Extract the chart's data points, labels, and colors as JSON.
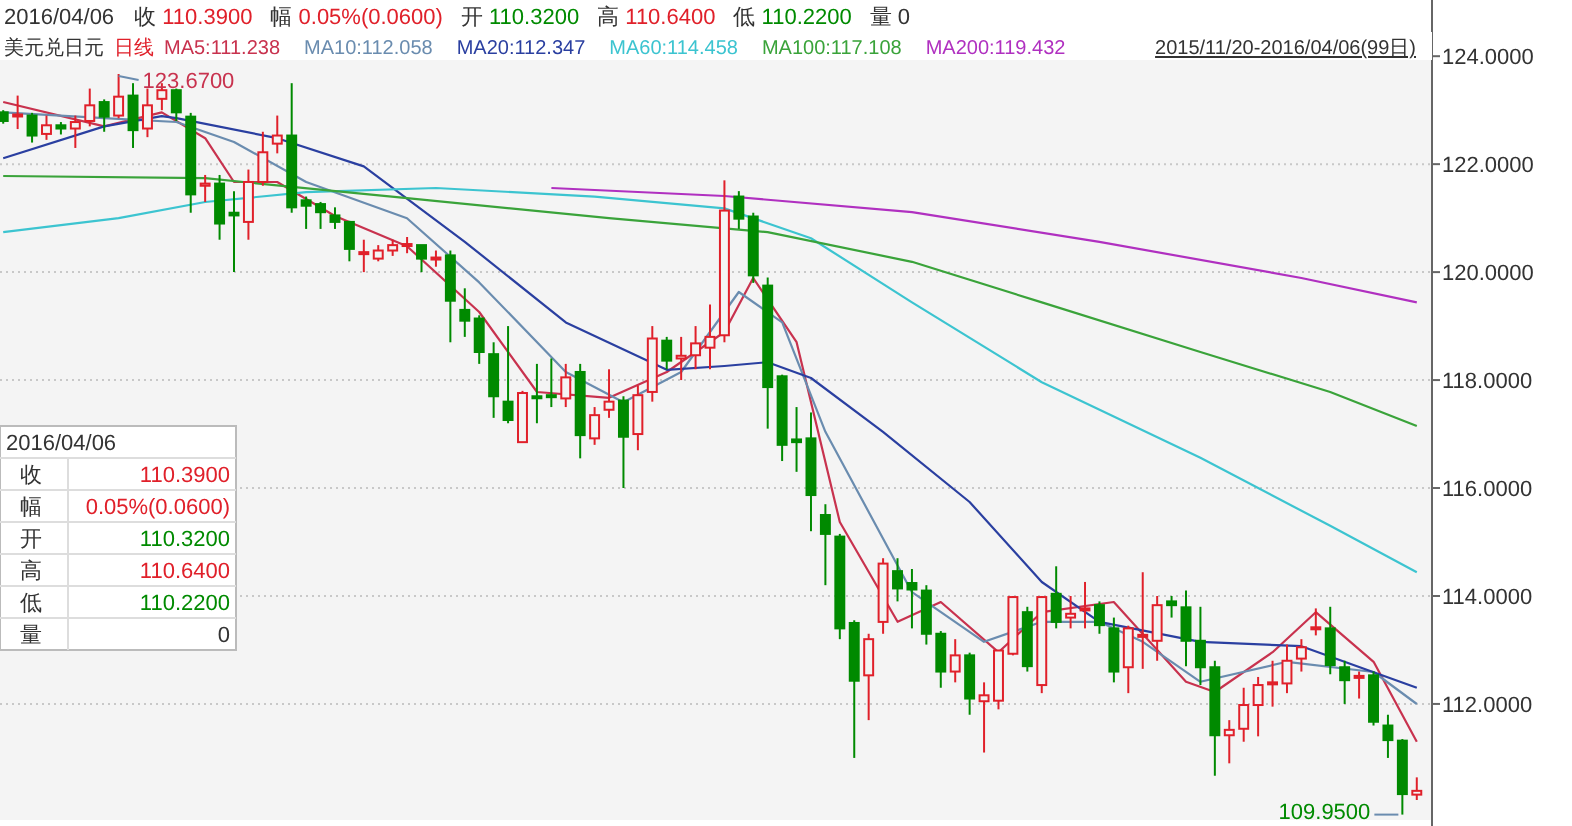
{
  "chart_data": {
    "type": "candlestick",
    "title": "美元兑日元",
    "subtitle": "日线",
    "legend": "top",
    "grid": "y",
    "categories": [
      null,
      null,
      null,
      null,
      null,
      null,
      null,
      null,
      null,
      null,
      null,
      null,
      null,
      null,
      null,
      null,
      null,
      null,
      null,
      null,
      null,
      null,
      null,
      null,
      null,
      null,
      null,
      null,
      null,
      null,
      null,
      null,
      null,
      null,
      null,
      null,
      null,
      null,
      null,
      null,
      null,
      null,
      null,
      null,
      null,
      null,
      null,
      null,
      null,
      null,
      null,
      null,
      null,
      null,
      null,
      null,
      null,
      null,
      null,
      null,
      null,
      null,
      null,
      null,
      null,
      null,
      null,
      null,
      null,
      null,
      null,
      null,
      null,
      null,
      null,
      null,
      null,
      null,
      null,
      null,
      null,
      null,
      null,
      null,
      null,
      null,
      null,
      null,
      null,
      null,
      null,
      null,
      null,
      null,
      null,
      null,
      null,
      null,
      null
    ],
    "ohlc": [
      [
        122.96,
        123.0,
        122.75,
        122.8
      ],
      [
        122.9,
        123.27,
        122.65,
        122.92
      ],
      [
        122.9,
        122.95,
        122.4,
        122.53
      ],
      [
        122.56,
        122.9,
        122.45,
        122.72
      ],
      [
        122.72,
        122.78,
        122.55,
        122.66
      ],
      [
        122.66,
        122.9,
        122.3,
        122.78
      ],
      [
        122.8,
        123.4,
        122.7,
        123.09
      ],
      [
        123.15,
        123.2,
        122.6,
        122.88
      ],
      [
        122.9,
        123.67,
        122.85,
        123.25
      ],
      [
        123.27,
        123.5,
        122.3,
        122.63
      ],
      [
        122.66,
        123.4,
        122.5,
        123.09
      ],
      [
        123.21,
        123.5,
        123.0,
        123.37
      ],
      [
        123.37,
        123.4,
        122.8,
        122.96
      ],
      [
        122.88,
        122.95,
        121.1,
        121.44
      ],
      [
        121.6,
        121.8,
        121.3,
        121.64
      ],
      [
        121.64,
        121.8,
        120.6,
        120.9
      ],
      [
        121.1,
        121.5,
        120.0,
        121.05
      ],
      [
        120.93,
        121.9,
        120.6,
        121.67
      ],
      [
        121.67,
        122.6,
        121.6,
        122.22
      ],
      [
        122.38,
        122.9,
        122.2,
        122.53
      ],
      [
        122.53,
        123.5,
        121.1,
        121.2
      ],
      [
        121.33,
        121.4,
        120.8,
        121.23
      ],
      [
        121.26,
        121.3,
        120.8,
        121.11
      ],
      [
        121.05,
        121.2,
        120.8,
        120.93
      ],
      [
        120.93,
        120.95,
        120.2,
        120.43
      ],
      [
        120.35,
        120.6,
        120.0,
        120.37
      ],
      [
        120.25,
        120.5,
        120.2,
        120.4
      ],
      [
        120.4,
        120.6,
        120.3,
        120.5
      ],
      [
        120.5,
        120.65,
        120.35,
        120.52
      ],
      [
        120.5,
        120.5,
        120.0,
        120.25
      ],
      [
        120.25,
        120.4,
        120.1,
        120.27
      ],
      [
        120.31,
        120.4,
        118.7,
        119.47
      ],
      [
        119.3,
        119.7,
        118.8,
        119.1
      ],
      [
        119.14,
        119.2,
        118.3,
        118.52
      ],
      [
        118.48,
        118.7,
        117.3,
        117.7
      ],
      [
        117.6,
        119.0,
        117.2,
        117.26
      ],
      [
        116.85,
        117.8,
        116.85,
        117.76
      ],
      [
        117.7,
        118.3,
        117.2,
        117.68
      ],
      [
        117.72,
        118.4,
        117.5,
        117.7
      ],
      [
        117.66,
        118.3,
        117.5,
        118.05
      ],
      [
        118.15,
        118.3,
        116.55,
        116.98
      ],
      [
        116.92,
        117.5,
        116.8,
        117.35
      ],
      [
        117.45,
        118.2,
        117.3,
        117.6
      ],
      [
        117.62,
        117.7,
        116.0,
        116.95
      ],
      [
        117.0,
        117.9,
        116.7,
        117.72
      ],
      [
        117.78,
        119.0,
        117.6,
        118.77
      ],
      [
        118.73,
        118.8,
        118.2,
        118.36
      ],
      [
        118.4,
        118.8,
        118.0,
        118.45
      ],
      [
        118.46,
        119.0,
        118.2,
        118.68
      ],
      [
        118.6,
        119.4,
        118.2,
        118.8
      ],
      [
        118.83,
        121.7,
        118.7,
        121.14
      ],
      [
        121.4,
        121.5,
        120.8,
        120.99
      ],
      [
        121.03,
        121.1,
        119.8,
        119.94
      ],
      [
        119.75,
        119.9,
        117.1,
        117.87
      ],
      [
        118.07,
        118.1,
        116.5,
        116.8
      ],
      [
        116.9,
        117.5,
        116.3,
        116.85
      ],
      [
        116.92,
        117.4,
        115.2,
        115.87
      ],
      [
        115.5,
        115.7,
        114.2,
        115.15
      ],
      [
        115.1,
        115.15,
        113.2,
        113.4
      ],
      [
        113.5,
        113.55,
        111.0,
        112.43
      ],
      [
        112.53,
        113.3,
        111.7,
        113.2
      ],
      [
        113.52,
        114.7,
        113.3,
        114.6
      ],
      [
        114.46,
        114.7,
        113.9,
        114.14
      ],
      [
        114.24,
        114.5,
        113.4,
        114.12
      ],
      [
        114.1,
        114.2,
        113.1,
        113.3
      ],
      [
        113.3,
        113.35,
        112.3,
        112.6
      ],
      [
        112.6,
        113.2,
        112.4,
        112.9
      ],
      [
        112.9,
        112.95,
        111.8,
        112.1
      ],
      [
        112.05,
        112.4,
        111.1,
        112.16
      ],
      [
        112.06,
        113.0,
        111.9,
        112.99
      ],
      [
        112.93,
        114.0,
        112.9,
        113.98
      ],
      [
        113.7,
        113.8,
        112.6,
        112.7
      ],
      [
        112.35,
        114.0,
        112.2,
        113.98
      ],
      [
        114.04,
        114.55,
        113.4,
        113.52
      ],
      [
        113.6,
        114.0,
        113.4,
        113.67
      ],
      [
        113.75,
        114.26,
        113.4,
        113.77
      ],
      [
        113.83,
        113.9,
        113.3,
        113.46
      ],
      [
        113.4,
        113.6,
        112.4,
        112.6
      ],
      [
        112.68,
        113.45,
        112.2,
        113.4
      ],
      [
        113.27,
        114.44,
        112.65,
        113.28
      ],
      [
        113.17,
        114.0,
        112.8,
        113.83
      ],
      [
        113.9,
        114.0,
        113.6,
        113.83
      ],
      [
        113.79,
        114.1,
        112.7,
        113.17
      ],
      [
        113.17,
        113.8,
        112.35,
        112.68
      ],
      [
        112.68,
        112.8,
        110.67,
        111.42
      ],
      [
        111.42,
        111.7,
        110.9,
        111.52
      ],
      [
        111.54,
        112.3,
        111.3,
        111.98
      ],
      [
        111.98,
        112.5,
        111.4,
        112.35
      ],
      [
        112.38,
        112.8,
        111.95,
        112.4
      ],
      [
        112.38,
        113.1,
        112.2,
        112.8
      ],
      [
        112.84,
        113.2,
        112.6,
        113.05
      ],
      [
        113.4,
        113.77,
        113.27,
        113.42
      ],
      [
        113.4,
        113.8,
        112.55,
        112.72
      ],
      [
        112.68,
        112.8,
        112.0,
        112.44
      ],
      [
        112.5,
        112.6,
        112.1,
        112.52
      ],
      [
        112.53,
        112.6,
        111.6,
        111.67
      ],
      [
        111.6,
        111.8,
        111.0,
        111.33
      ],
      [
        111.32,
        111.35,
        109.95,
        110.33
      ],
      [
        110.32,
        110.64,
        110.22,
        110.39
      ]
    ],
    "series": [
      {
        "name": "MA5:111.238",
        "type": "line",
        "color": "#c8324e",
        "values": [
          123.15,
          null,
          null,
          null,
          null,
          null,
          null,
          122.7,
          null,
          null,
          null,
          122.96,
          null,
          null,
          122.48,
          null,
          121.67,
          null,
          null,
          121.67,
          null,
          null,
          null,
          121.04,
          null,
          null,
          null,
          null,
          120.48,
          null,
          null,
          null,
          null,
          119.26,
          null,
          null,
          null,
          117.78,
          null,
          null,
          null,
          null,
          117.67,
          null,
          null,
          null,
          118.15,
          null,
          null,
          null,
          118.89,
          null,
          119.89,
          null,
          null,
          118.7,
          null,
          null,
          115.37,
          null,
          null,
          null,
          113.52,
          null,
          null,
          113.89,
          null,
          null,
          null,
          112.96,
          null,
          null,
          113.7,
          null,
          null,
          null,
          null,
          113.89,
          null,
          null,
          null,
          null,
          112.41,
          null,
          112.22,
          null,
          null,
          null,
          112.96,
          null,
          null,
          113.7,
          null,
          null,
          null,
          112.78,
          null,
          null,
          111.3
        ]
      },
      {
        "name": "MA10:112.058",
        "type": "line",
        "color": "#6a8caf",
        "values": [
          122.96,
          null,
          null,
          null,
          null,
          null,
          null,
          122.85,
          null,
          null,
          null,
          null,
          122.78,
          null,
          null,
          null,
          122.41,
          null,
          null,
          null,
          null,
          121.67,
          null,
          null,
          null,
          null,
          null,
          null,
          121.0,
          null,
          null,
          null,
          null,
          119.81,
          null,
          null,
          null,
          null,
          null,
          118.15,
          null,
          null,
          null,
          117.59,
          null,
          null,
          null,
          118.15,
          null,
          null,
          null,
          119.63,
          null,
          null,
          119.07,
          null,
          null,
          117.04,
          null,
          null,
          null,
          null,
          null,
          114.07,
          null,
          null,
          null,
          null,
          113.15,
          null,
          null,
          null,
          113.52,
          null,
          null,
          null,
          113.52,
          null,
          null,
          113.15,
          null,
          null,
          null,
          112.41,
          null,
          null,
          null,
          null,
          null,
          112.78,
          null,
          null,
          null,
          null,
          null,
          112.59,
          null,
          null,
          112.0
        ]
      },
      {
        "name": "MA20:112.347",
        "type": "line",
        "color": "#2a3fa0",
        "values": [
          122.11,
          null,
          null,
          null,
          null,
          null,
          null,
          122.7,
          null,
          null,
          null,
          122.89,
          122.85,
          null,
          null,
          null,
          null,
          null,
          null,
          122.48,
          null,
          null,
          null,
          null,
          null,
          121.96,
          null,
          null,
          null,
          null,
          null,
          null,
          120.56,
          null,
          null,
          null,
          null,
          null,
          null,
          119.07,
          null,
          null,
          null,
          null,
          null,
          null,
          118.19,
          null,
          null,
          null,
          118.26,
          null,
          null,
          118.33,
          null,
          null,
          118.04,
          null,
          null,
          null,
          null,
          117.04,
          null,
          null,
          null,
          null,
          null,
          115.74,
          null,
          null,
          null,
          null,
          114.26,
          null,
          null,
          null,
          113.52,
          null,
          null,
          null,
          null,
          null,
          null,
          113.15,
          null,
          null,
          null,
          null,
          null,
          null,
          113.07,
          null,
          null,
          null,
          null,
          null,
          null,
          null,
          112.3
        ]
      },
      {
        "name": "MA60:114.458",
        "type": "line",
        "color": "#3cc4d0",
        "values": [
          120.74,
          null,
          null,
          null,
          null,
          null,
          null,
          null,
          121.0,
          null,
          null,
          null,
          null,
          null,
          121.3,
          null,
          null,
          null,
          null,
          null,
          null,
          121.48,
          null,
          null,
          null,
          null,
          null,
          null,
          null,
          null,
          121.56,
          null,
          null,
          null,
          null,
          null,
          null,
          null,
          null,
          null,
          null,
          121.4,
          null,
          null,
          null,
          null,
          null,
          null,
          null,
          null,
          121.18,
          null,
          null,
          null,
          null,
          null,
          120.63,
          null,
          null,
          null,
          null,
          null,
          null,
          119.44,
          null,
          null,
          null,
          null,
          null,
          null,
          null,
          null,
          117.96,
          null,
          null,
          null,
          null,
          null,
          null,
          null,
          null,
          null,
          null,
          116.56,
          null,
          null,
          null,
          null,
          null,
          null,
          null,
          null,
          115.3,
          null,
          null,
          null,
          null,
          null,
          114.44
        ]
      },
      {
        "name": "MA100:117.108",
        "type": "line",
        "color": "#3aa33a",
        "values": [
          121.78,
          null,
          null,
          null,
          null,
          null,
          null,
          null,
          null,
          null,
          null,
          null,
          null,
          null,
          121.74,
          null,
          null,
          null,
          null,
          null,
          null,
          null,
          null,
          null,
          null,
          null,
          null,
          null,
          121.37,
          null,
          null,
          null,
          null,
          null,
          null,
          null,
          null,
          null,
          null,
          null,
          null,
          null,
          121.0,
          null,
          null,
          null,
          null,
          null,
          null,
          null,
          null,
          null,
          null,
          120.74,
          null,
          null,
          null,
          null,
          null,
          null,
          null,
          null,
          null,
          120.19,
          null,
          null,
          null,
          null,
          null,
          null,
          null,
          null,
          119.44,
          null,
          null,
          null,
          null,
          null,
          null,
          null,
          null,
          null,
          null,
          118.52,
          null,
          null,
          null,
          null,
          null,
          null,
          null,
          null,
          117.78,
          null,
          null,
          null,
          null,
          null,
          117.15
        ]
      },
      {
        "name": "MA200:119.432",
        "type": "line",
        "color": "#b030c0",
        "values": [
          null,
          null,
          null,
          null,
          null,
          null,
          null,
          null,
          null,
          null,
          null,
          null,
          null,
          null,
          null,
          null,
          null,
          null,
          null,
          null,
          null,
          null,
          null,
          null,
          null,
          null,
          null,
          null,
          null,
          null,
          null,
          null,
          null,
          null,
          null,
          null,
          null,
          null,
          121.56,
          null,
          null,
          null,
          null,
          null,
          null,
          null,
          null,
          null,
          null,
          null,
          121.41,
          null,
          null,
          null,
          null,
          null,
          null,
          null,
          null,
          null,
          null,
          null,
          null,
          121.11,
          null,
          null,
          null,
          null,
          null,
          null,
          null,
          null,
          null,
          null,
          null,
          null,
          120.56,
          null,
          null,
          null,
          null,
          null,
          null,
          null,
          null,
          null,
          null,
          null,
          null,
          null,
          119.89,
          null,
          null,
          null,
          null,
          null,
          null,
          null,
          119.44
        ]
      }
    ],
    "ylim": [
      109.85,
      124.3
    ],
    "yticks": [
      {
        "value": 112,
        "label": "112.0000"
      },
      {
        "value": 114,
        "label": "114.0000"
      },
      {
        "value": 116,
        "label": "116.0000"
      },
      {
        "value": 118,
        "label": "118.0000"
      },
      {
        "value": 120,
        "label": "120.0000"
      },
      {
        "value": 122,
        "label": "122.0000"
      },
      {
        "value": 124,
        "label": "124.0000"
      }
    ],
    "annotations": [
      "2016/04/06",
      "收 110.3900",
      "幅 0.05%(0.0600)",
      "开 110.3200",
      "高 110.6400",
      "低 110.2200",
      "量 0",
      "2015/11/20-2016/04/06(99日)",
      "2016/04/06",
      "收 110.3900",
      "幅 0.05%(0.0600)",
      "开 110.3200",
      "高 110.6400",
      "低 110.2200",
      "量 0",
      "123.6700",
      "109.9500"
    ]
  }
}
